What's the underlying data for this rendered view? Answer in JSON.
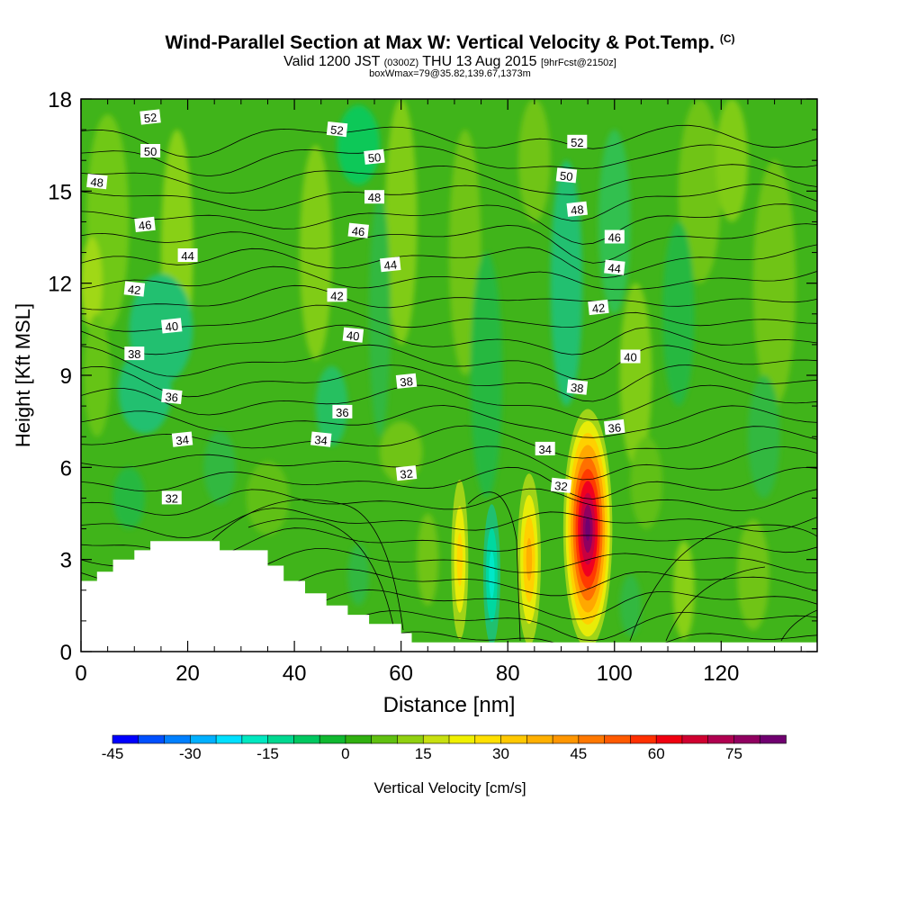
{
  "title_main": "Wind-Parallel Section at Max W: Vertical Velocity & Pot.Temp.",
  "title_mark": "(C)",
  "subtitle_a": "Valid 1200 JST",
  "subtitle_b": "(0300Z)",
  "subtitle_c": "THU 13 Aug 2015",
  "subtitle_d": "[9hrFcst@2150z]",
  "subtitle_line3": "boxWmax=79@35.82,139.67,1373m",
  "chart_data": {
    "type": "heatmap",
    "xlabel": "Distance [nm]",
    "ylabel": "Height [Kft MSL]",
    "xlim": [
      0,
      138
    ],
    "ylim": [
      0,
      18
    ],
    "x_ticks": [
      "0",
      "20",
      "40",
      "60",
      "80",
      "100",
      "120"
    ],
    "y_ticks": [
      "0",
      "3",
      "6",
      "9",
      "12",
      "15",
      "18"
    ],
    "colorbar": {
      "label": "Vertical Velocity [cm/s]",
      "ticks": [
        "-45",
        "-30",
        "-15",
        "0",
        "15",
        "30",
        "45",
        "60",
        "75"
      ],
      "min": -45,
      "max": 85,
      "step": 5,
      "colors": [
        "#0000ff",
        "#0050ff",
        "#0080ff",
        "#00b0ff",
        "#00e0ff",
        "#00e8c0",
        "#00d890",
        "#00c860",
        "#10b830",
        "#30b010",
        "#60c010",
        "#90d010",
        "#c8e010",
        "#f0f000",
        "#ffe000",
        "#ffc800",
        "#ffb000",
        "#ff9600",
        "#ff7800",
        "#ff5a00",
        "#ff3000",
        "#f00010",
        "#d00030",
        "#b00050",
        "#900060",
        "#700070"
      ]
    },
    "vertical_velocity_features": [
      {
        "x": 95,
        "z": 4,
        "w_max": 79
      },
      {
        "x": 84,
        "z": 3,
        "w_max": 26
      },
      {
        "x": 71,
        "z": 3,
        "w_max": 22
      },
      {
        "x": 77,
        "z": 2.5,
        "w_max": -12
      },
      {
        "x": 18,
        "z": 10.5,
        "w_max": -8
      },
      {
        "x": 26,
        "z": 5.5,
        "w_max": -6
      }
    ],
    "terrain": [
      {
        "x": 0,
        "z": 2.3
      },
      {
        "x": 3,
        "z": 2.6
      },
      {
        "x": 6,
        "z": 3.0
      },
      {
        "x": 10,
        "z": 3.3
      },
      {
        "x": 13,
        "z": 3.6
      },
      {
        "x": 26,
        "z": 3.3
      },
      {
        "x": 35,
        "z": 2.8
      },
      {
        "x": 38,
        "z": 2.3
      },
      {
        "x": 42,
        "z": 1.9
      },
      {
        "x": 46,
        "z": 1.5
      },
      {
        "x": 50,
        "z": 1.2
      },
      {
        "x": 54,
        "z": 0.9
      },
      {
        "x": 60,
        "z": 0.6
      },
      {
        "x": 62,
        "z": 0.3
      },
      {
        "x": 138,
        "z": 0.3
      }
    ],
    "theta_contours": {
      "levels": [
        29,
        30,
        31,
        32,
        33,
        34,
        35,
        36,
        37,
        38,
        39,
        40,
        41,
        42,
        43,
        44,
        45,
        46,
        47,
        48,
        49,
        50,
        51,
        52,
        53,
        54
      ],
      "labels": [
        {
          "text": "52",
          "x": 13,
          "z": 17.4
        },
        {
          "text": "50",
          "x": 13,
          "z": 16.3
        },
        {
          "text": "48",
          "x": 3,
          "z": 15.3
        },
        {
          "text": "46",
          "x": 12,
          "z": 13.9
        },
        {
          "text": "44",
          "x": 20,
          "z": 12.9
        },
        {
          "text": "42",
          "x": 10,
          "z": 11.8
        },
        {
          "text": "40",
          "x": 17,
          "z": 10.6
        },
        {
          "text": "38",
          "x": 10,
          "z": 9.7
        },
        {
          "text": "36",
          "x": 17,
          "z": 8.3
        },
        {
          "text": "34",
          "x": 19,
          "z": 6.9
        },
        {
          "text": "32",
          "x": 17,
          "z": 5.0
        },
        {
          "text": "52",
          "x": 48,
          "z": 17.0
        },
        {
          "text": "50",
          "x": 55,
          "z": 16.1
        },
        {
          "text": "48",
          "x": 55,
          "z": 14.8
        },
        {
          "text": "46",
          "x": 52,
          "z": 13.7
        },
        {
          "text": "44",
          "x": 58,
          "z": 12.6
        },
        {
          "text": "42",
          "x": 48,
          "z": 11.6
        },
        {
          "text": "40",
          "x": 51,
          "z": 10.3
        },
        {
          "text": "38",
          "x": 61,
          "z": 8.8
        },
        {
          "text": "36",
          "x": 49,
          "z": 7.8
        },
        {
          "text": "34",
          "x": 45,
          "z": 6.9
        },
        {
          "text": "32",
          "x": 61,
          "z": 5.8
        },
        {
          "text": "52",
          "x": 93,
          "z": 16.6
        },
        {
          "text": "50",
          "x": 91,
          "z": 15.5
        },
        {
          "text": "48",
          "x": 93,
          "z": 14.4
        },
        {
          "text": "46",
          "x": 100,
          "z": 13.5
        },
        {
          "text": "44",
          "x": 100,
          "z": 12.5
        },
        {
          "text": "42",
          "x": 97,
          "z": 11.2
        },
        {
          "text": "40",
          "x": 103,
          "z": 9.6
        },
        {
          "text": "38",
          "x": 93,
          "z": 8.6
        },
        {
          "text": "36",
          "x": 100,
          "z": 7.3
        },
        {
          "text": "34",
          "x": 87,
          "z": 6.6
        },
        {
          "text": "32",
          "x": 90,
          "z": 5.4
        }
      ]
    }
  }
}
